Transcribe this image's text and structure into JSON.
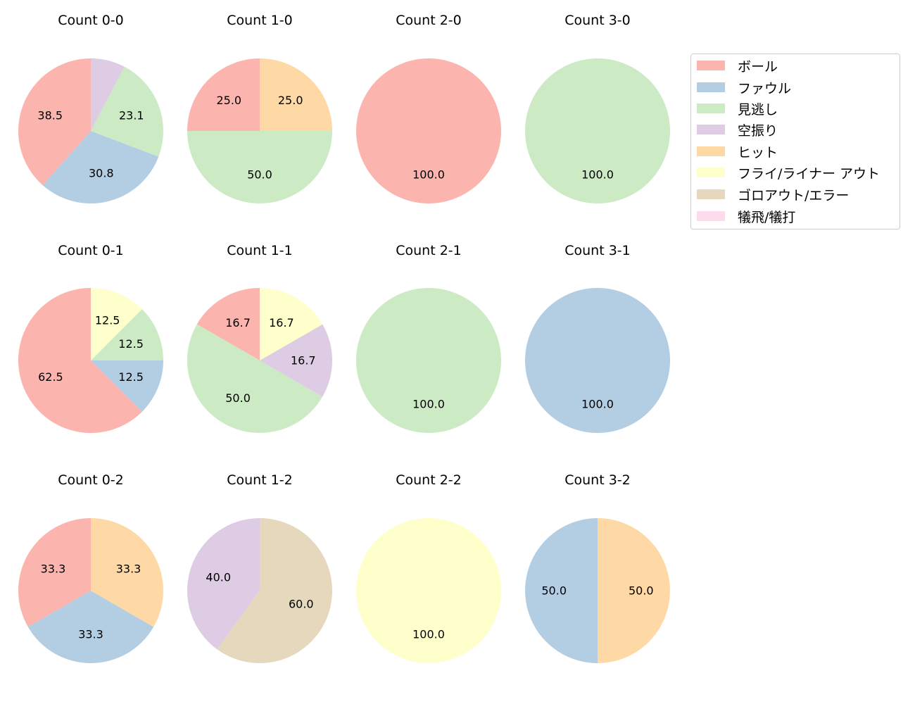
{
  "categories": [
    "ボール",
    "ファウル",
    "見逃し",
    "空振り",
    "ヒット",
    "フライ/ライナー アウト",
    "ゴロアウト/エラー",
    "犠飛/犠打"
  ],
  "colors": [
    "#fbb4ae",
    "#b3cde3",
    "#ccebc5",
    "#decbe4",
    "#fed9a6",
    "#ffffcc",
    "#e5d8bd",
    "#fddaec"
  ],
  "chart_data": [
    {
      "type": "pie",
      "title": "Count 0-0",
      "values": [
        38.5,
        30.8,
        23.1,
        7.7,
        0,
        0,
        0,
        0
      ],
      "labels": [
        "38.5",
        "30.8",
        "23.1",
        "",
        "",
        "",
        "",
        ""
      ]
    },
    {
      "type": "pie",
      "title": "Count 1-0",
      "values": [
        25.0,
        0,
        50.0,
        0,
        25.0,
        0,
        0,
        0
      ],
      "labels": [
        "25.0",
        "",
        "50.0",
        "",
        "25.0",
        "",
        "",
        ""
      ]
    },
    {
      "type": "pie",
      "title": "Count 2-0",
      "values": [
        100.0,
        0,
        0,
        0,
        0,
        0,
        0,
        0
      ],
      "labels": [
        "100.0",
        "",
        "",
        "",
        "",
        "",
        "",
        ""
      ]
    },
    {
      "type": "pie",
      "title": "Count 3-0",
      "values": [
        0,
        0,
        100.0,
        0,
        0,
        0,
        0,
        0
      ],
      "labels": [
        "",
        "",
        "100.0",
        "",
        "",
        "",
        "",
        ""
      ]
    },
    {
      "type": "pie",
      "title": "Count 0-1",
      "values": [
        62.5,
        12.5,
        12.5,
        0,
        0,
        12.5,
        0,
        0
      ],
      "labels": [
        "62.5",
        "12.5",
        "12.5",
        "",
        "",
        "12.5",
        "",
        ""
      ]
    },
    {
      "type": "pie",
      "title": "Count 1-1",
      "values": [
        16.7,
        0,
        50.0,
        16.7,
        0,
        16.7,
        0,
        0
      ],
      "labels": [
        "16.7",
        "",
        "50.0",
        "16.7",
        "",
        "16.7",
        "",
        ""
      ]
    },
    {
      "type": "pie",
      "title": "Count 2-1",
      "values": [
        0,
        0,
        100.0,
        0,
        0,
        0,
        0,
        0
      ],
      "labels": [
        "",
        "",
        "100.0",
        "",
        "",
        "",
        "",
        ""
      ]
    },
    {
      "type": "pie",
      "title": "Count 3-1",
      "values": [
        0,
        100.0,
        0,
        0,
        0,
        0,
        0,
        0
      ],
      "labels": [
        "",
        "100.0",
        "",
        "",
        "",
        "",
        "",
        ""
      ]
    },
    {
      "type": "pie",
      "title": "Count 0-2",
      "values": [
        33.3,
        33.3,
        0,
        0,
        33.3,
        0,
        0,
        0
      ],
      "labels": [
        "33.3",
        "33.3",
        "",
        "",
        "33.3",
        "",
        "",
        ""
      ]
    },
    {
      "type": "pie",
      "title": "Count 1-2",
      "values": [
        0,
        0,
        0,
        40.0,
        0,
        0,
        60.0,
        0
      ],
      "labels": [
        "",
        "",
        "",
        "40.0",
        "",
        "",
        "60.0",
        ""
      ]
    },
    {
      "type": "pie",
      "title": "Count 2-2",
      "values": [
        0,
        0,
        0,
        0,
        0,
        100.0,
        0,
        0
      ],
      "labels": [
        "",
        "",
        "",
        "",
        "",
        "100.0",
        "",
        ""
      ]
    },
    {
      "type": "pie",
      "title": "Count 3-2",
      "values": [
        0,
        50.0,
        0,
        0,
        50.0,
        0,
        0,
        0
      ],
      "labels": [
        "",
        "50.0",
        "",
        "",
        "50.0",
        "",
        "",
        ""
      ]
    }
  ]
}
